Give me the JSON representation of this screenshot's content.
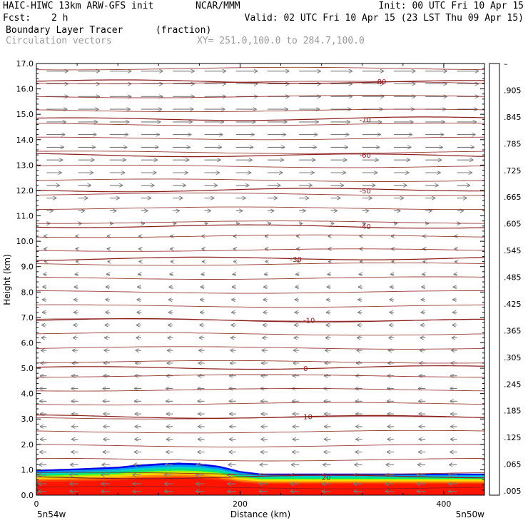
{
  "header": {
    "model": "HAIC-HIWC 13km ARW-GFS init",
    "org": "NCAR/MMM",
    "init": "Init: 00 UTC Fri 10 Apr 15",
    "fcst_label": "Fcst:",
    "fcst_value": "2 h",
    "valid": "Valid: 02 UTC Fri 10 Apr 15 (23 LST Thu 09 Apr 15)",
    "field_name": "Boundary Layer Tracer",
    "field_units": "(fraction)",
    "vector_label": "Circulation vectors",
    "xy": "XY= 251.0,100.0 to 284.7,100.0"
  },
  "chart_data": {
    "type": "cross-section",
    "xlabel": "Distance (km)",
    "ylabel": "Height (km)",
    "xlim": [
      0,
      440
    ],
    "ylim": [
      0,
      17
    ],
    "x_ticks": [
      "0",
      "200",
      "400"
    ],
    "x_tick_values": [
      0,
      200,
      400
    ],
    "y_ticks": [
      "0.0",
      "1.0",
      "2.0",
      "3.0",
      "4.0",
      "5.0",
      "6.0",
      "7.0",
      "8.0",
      "9.0",
      "10.0",
      "11.0",
      "12.0",
      "13.0",
      "14.0",
      "15.0",
      "16.0",
      "17.0"
    ],
    "endpoint_left": "5n54w",
    "endpoint_right": "5n50w",
    "colorbar": {
      "labels": [
        ".005",
        ".065",
        ".125",
        ".185",
        ".245",
        ".305",
        ".365",
        ".425",
        ".485",
        ".545",
        ".605",
        ".665",
        ".725",
        ".785",
        ".845",
        ".905",
        "–"
      ],
      "colors": [
        "#ffffff",
        "#00b4dc",
        "#00c8b4",
        "#00d28c",
        "#00dc64",
        "#28e628",
        "#64f000",
        "#a0f000",
        "#d2f000",
        "#f5ed00",
        "#ffd700",
        "#ffbe00",
        "#ffa000",
        "#ff7d00",
        "#ff5a00",
        "#ff3200",
        "#ff1e00",
        "#ff0000",
        "#f00000",
        "#e60000"
      ]
    },
    "temperature_contours": [
      {
        "label": "-80",
        "height_km": 16.3
      },
      {
        "label": "-70",
        "height_km": 14.8
      },
      {
        "label": "-60",
        "height_km": 13.4
      },
      {
        "label": "-50",
        "height_km": 12.0
      },
      {
        "label": "-40",
        "height_km": 10.6
      },
      {
        "label": "-30",
        "height_km": 9.3
      },
      {
        "label": "-10",
        "height_km": 6.9
      },
      {
        "label": "0",
        "height_km": 5.0
      },
      {
        "label": "10",
        "height_km": 3.1
      },
      {
        "label": "20",
        "height_km": 0.7
      }
    ],
    "tracer_top_km": [
      1.0,
      1.05,
      1.12,
      1.2,
      1.25,
      1.28,
      1.25,
      1.15,
      0.95,
      0.85,
      0.85,
      0.85,
      0.85,
      0.85
    ],
    "tracer_top_x_km": [
      0,
      40,
      80,
      100,
      120,
      140,
      160,
      180,
      200,
      220,
      260,
      320,
      380,
      440
    ],
    "wind_profile": [
      {
        "z": 16.7,
        "u": 1.0
      },
      {
        "z": 16.2,
        "u": 1.0
      },
      {
        "z": 15.7,
        "u": 1.0
      },
      {
        "z": 15.2,
        "u": 0.95
      },
      {
        "z": 14.7,
        "u": 0.9
      },
      {
        "z": 14.2,
        "u": 0.85
      },
      {
        "z": 13.7,
        "u": 0.8
      },
      {
        "z": 13.2,
        "u": 0.75
      },
      {
        "z": 12.7,
        "u": 0.7
      },
      {
        "z": 12.2,
        "u": 0.6
      },
      {
        "z": 11.7,
        "u": 0.45
      },
      {
        "z": 11.2,
        "u": 0.3
      },
      {
        "z": 10.7,
        "u": 0.15
      },
      {
        "z": 10.2,
        "u": -0.12
      },
      {
        "z": 9.7,
        "u": -0.12
      },
      {
        "z": 9.2,
        "u": -0.1
      },
      {
        "z": 8.7,
        "u": -0.15
      },
      {
        "z": 8.2,
        "u": -0.18
      },
      {
        "z": 7.7,
        "u": -0.2
      },
      {
        "z": 7.2,
        "u": -0.2
      },
      {
        "z": 6.7,
        "u": -0.22
      },
      {
        "z": 6.2,
        "u": -0.24
      },
      {
        "z": 5.7,
        "u": -0.26
      },
      {
        "z": 5.2,
        "u": -0.28
      },
      {
        "z": 4.7,
        "u": -0.3
      },
      {
        "z": 4.2,
        "u": -0.32
      },
      {
        "z": 3.7,
        "u": -0.32
      },
      {
        "z": 3.2,
        "u": -0.3
      },
      {
        "z": 2.7,
        "u": -0.3
      },
      {
        "z": 2.2,
        "u": -0.3
      },
      {
        "z": 1.7,
        "u": -0.32
      },
      {
        "z": 1.2,
        "u": -0.36
      },
      {
        "z": 0.8,
        "u": -0.4
      },
      {
        "z": 0.45,
        "u": -0.4
      },
      {
        "z": 0.15,
        "u": -0.4
      }
    ]
  }
}
